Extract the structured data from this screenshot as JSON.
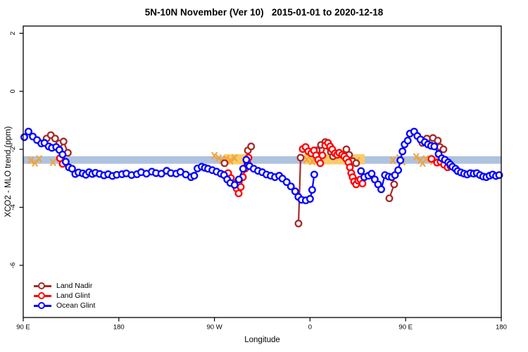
{
  "title": "5N-10N November (Ver 10)   2015-01-01 to 2020-12-18",
  "chart_data": {
    "type": "line",
    "title": "5N-10N November (Ver 10)   2015-01-01 to 2020-12-18",
    "xlabel": "Longitude",
    "ylabel": "XCO2 - MLO trend (ppm)",
    "x_note": "longitude axis wraps: 90E to 180 to 90W to 0 to 90E to 180, encoded 90..540",
    "xlim": [
      90,
      540
    ],
    "ylim": [
      -7.8,
      2.25
    ],
    "x_ticks": [
      90,
      180,
      270,
      360,
      450,
      540
    ],
    "x_tick_labels": [
      "90 E",
      "180",
      "90 W",
      "0",
      "90 E",
      "180"
    ],
    "y_ticks": [
      2,
      0,
      -2,
      -4,
      -6
    ],
    "y_tick_labels": [
      "2",
      "0",
      "-2",
      "-4",
      "-6"
    ],
    "grid": "off",
    "band": {
      "color": "#AFC3DE",
      "y_top": -2.24,
      "y_bottom": -2.5
    },
    "highlights": {
      "patch_color": "#FBCB68",
      "mark_color": "#F2A33C",
      "patches": [
        {
          "x_start": 279,
          "x_end": 301.5,
          "y_top": -2.17,
          "y_bottom": -2.52
        },
        {
          "x_start": 354.5,
          "x_end": 411.5,
          "y_top": -2.17,
          "y_bottom": -2.52
        }
      ],
      "marks": [
        [
          97,
          -2.38
        ],
        [
          101,
          -2.47
        ],
        [
          105,
          -2.33
        ],
        [
          118,
          -2.45
        ],
        [
          270,
          -2.22
        ],
        [
          274,
          -2.3
        ],
        [
          277,
          -2.38
        ],
        [
          281,
          -2.33
        ],
        [
          285,
          -2.4
        ],
        [
          289,
          -2.3
        ],
        [
          357,
          -2.35
        ],
        [
          362,
          -2.42
        ],
        [
          368,
          -2.3
        ],
        [
          398,
          -2.33
        ],
        [
          404,
          -2.4
        ],
        [
          438,
          -2.38
        ],
        [
          444,
          -2.3
        ],
        [
          447,
          -2.43
        ],
        [
          460,
          -2.26
        ],
        [
          464,
          -2.38
        ],
        [
          466,
          -2.48
        ],
        [
          469,
          -2.33
        ],
        [
          476,
          -2.41
        ]
      ]
    },
    "legend": {
      "position": "bottom-left",
      "entries": [
        "Land Nadir",
        "Land Glint",
        "Ocean Glint"
      ]
    },
    "series": [
      {
        "name": "Land Nadir",
        "color": "#A52A2A",
        "segments": [
          [
            [
              112,
              -1.63
            ],
            [
              116,
              -1.51
            ],
            [
              120,
              -1.63
            ],
            [
              124,
              -1.8
            ],
            [
              128,
              -1.73
            ],
            [
              132,
              -2.12
            ]
          ],
          [
            [
              279.5,
              -2.48
            ]
          ],
          [
            [
              301.5,
              -2.04
            ],
            [
              304.5,
              -1.9
            ]
          ],
          [
            [
              349.1,
              -4.56
            ],
            [
              351.1,
              -2.29
            ]
          ],
          [
            [
              366.3,
              -2.04
            ],
            [
              370.3,
              -1.85
            ],
            [
              374.3,
              -1.75
            ],
            [
              377.6,
              -1.9
            ],
            [
              379.6,
              -2.09
            ],
            [
              381.6,
              -2.24
            ]
          ],
          [
            [
              394.2,
              -2.0
            ],
            [
              396.8,
              -2.19
            ],
            [
              400.1,
              -2.41
            ],
            [
              403.4,
              -2.48
            ]
          ],
          [
            [
              434.6,
              -3.69
            ],
            [
              439.2,
              -3.21
            ]
          ],
          [
            [
              465.8,
              -1.78
            ],
            [
              470,
              -1.63
            ],
            [
              475.7,
              -1.61
            ],
            [
              480.3,
              -1.7
            ],
            [
              482.3,
              -1.92
            ],
            [
              485.6,
              -2.0
            ]
          ]
        ]
      },
      {
        "name": "Land Glint",
        "color": "#FF0000",
        "segments": [
          [
            [
              124.5,
              -2.31
            ],
            [
              127.1,
              -2.5
            ]
          ],
          [
            [
              282.9,
              -2.82
            ],
            [
              285.5,
              -2.99
            ],
            [
              288.2,
              -3.16
            ],
            [
              290.8,
              -3.35
            ],
            [
              292.8,
              -3.52
            ],
            [
              294.8,
              -3.3
            ],
            [
              296.8,
              -2.96
            ],
            [
              298.8,
              -2.67
            ],
            [
              300.8,
              -2.43
            ],
            [
              302.1,
              -2.29
            ]
          ],
          [
            [
              353.1,
              -1.99
            ],
            [
              355.8,
              -1.92
            ],
            [
              358.4,
              -2.07
            ],
            [
              361.1,
              -2.14
            ],
            [
              363.7,
              -2.04
            ],
            [
              365.7,
              -2.21
            ],
            [
              367.7,
              -2.36
            ],
            [
              369.6,
              -2.48
            ],
            [
              371.6,
              -2.21
            ],
            [
              374.3,
              -1.87
            ],
            [
              376.9,
              -1.78
            ],
            [
              378.9,
              -1.9
            ],
            [
              380.9,
              -2.0
            ],
            [
              383.5,
              -2.14
            ],
            [
              385.5,
              -2.19
            ],
            [
              387.5,
              -2.12
            ],
            [
              390.2,
              -2.19
            ],
            [
              392.2,
              -2.24
            ],
            [
              394.2,
              -2.33
            ],
            [
              396.2,
              -2.45
            ],
            [
              397.5,
              -2.62
            ],
            [
              398.8,
              -2.82
            ],
            [
              400.1,
              -2.96
            ],
            [
              401.5,
              -3.11
            ],
            [
              403.4,
              -3.21
            ],
            [
              405.4,
              -3.08
            ],
            [
              407.4,
              -3.04
            ],
            [
              409.4,
              -3.18
            ]
          ],
          [
            [
              474.3,
              -2.33
            ],
            [
              479.6,
              -2.46
            ],
            [
              482.9,
              -2.43
            ],
            [
              486.2,
              -2.53
            ],
            [
              489.5,
              -2.62
            ],
            [
              492.2,
              -2.58
            ]
          ]
        ]
      },
      {
        "name": "Ocean Glint",
        "color": "#0000FF",
        "segments": [
          [
            [
              91,
              -1.58
            ],
            [
              95,
              -1.39
            ],
            [
              99,
              -1.56
            ],
            [
              103,
              -1.68
            ],
            [
              107,
              -1.8
            ],
            [
              110,
              -1.78
            ],
            [
              114,
              -1.9
            ],
            [
              117,
              -1.95
            ],
            [
              121,
              -1.92
            ],
            [
              124,
              -2.02
            ],
            [
              127,
              -2.18
            ],
            [
              130,
              -2.43
            ],
            [
              133,
              -2.62
            ],
            [
              136,
              -2.67
            ],
            [
              139,
              -2.85
            ],
            [
              142,
              -2.8
            ],
            [
              146,
              -2.83
            ],
            [
              149,
              -2.88
            ],
            [
              152,
              -2.79
            ],
            [
              155,
              -2.85
            ],
            [
              158,
              -2.81
            ],
            [
              162,
              -2.85
            ],
            [
              166,
              -2.9
            ],
            [
              170,
              -2.86
            ],
            [
              174,
              -2.92
            ],
            [
              178,
              -2.88
            ],
            [
              183,
              -2.86
            ],
            [
              187,
              -2.83
            ],
            [
              192,
              -2.89
            ],
            [
              197,
              -2.86
            ],
            [
              201,
              -2.79
            ],
            [
              206,
              -2.84
            ],
            [
              211,
              -2.77
            ],
            [
              215,
              -2.82
            ],
            [
              220,
              -2.84
            ],
            [
              225,
              -2.74
            ],
            [
              229,
              -2.82
            ],
            [
              234,
              -2.84
            ],
            [
              238,
              -2.78
            ],
            [
              243,
              -2.87
            ],
            [
              248,
              -2.96
            ],
            [
              251,
              -2.91
            ],
            [
              254,
              -2.66
            ],
            [
              258,
              -2.6
            ],
            [
              261,
              -2.64
            ],
            [
              264,
              -2.67
            ],
            [
              268,
              -2.72
            ],
            [
              272,
              -2.77
            ],
            [
              276,
              -2.84
            ],
            [
              279,
              -2.89
            ],
            [
              282,
              -3.04
            ],
            [
              285,
              -3.16
            ],
            [
              289,
              -3.23
            ],
            [
              293,
              -3.04
            ],
            [
              297,
              -2.67
            ],
            [
              300,
              -2.36
            ],
            [
              303,
              -2.58
            ],
            [
              307,
              -2.67
            ],
            [
              311,
              -2.74
            ],
            [
              315,
              -2.79
            ],
            [
              319,
              -2.87
            ],
            [
              323,
              -2.91
            ],
            [
              327,
              -2.96
            ],
            [
              331,
              -2.91
            ],
            [
              334,
              -3.01
            ],
            [
              338,
              -3.13
            ],
            [
              342,
              -3.28
            ],
            [
              346,
              -3.45
            ],
            [
              349,
              -3.64
            ],
            [
              352,
              -3.74
            ],
            [
              356,
              -3.76
            ],
            [
              360,
              -3.71
            ],
            [
              362,
              -3.4
            ],
            [
              364,
              -2.87
            ]
          ],
          [
            [
              408,
              -2.75
            ],
            [
              411,
              -2.96
            ],
            [
              415,
              -2.91
            ],
            [
              418,
              -2.84
            ],
            [
              421,
              -3.04
            ],
            [
              424,
              -3.21
            ],
            [
              427,
              -3.38
            ],
            [
              430.5,
              -2.89
            ],
            [
              434,
              -2.94
            ],
            [
              437,
              -2.96
            ],
            [
              440,
              -2.89
            ],
            [
              443,
              -2.72
            ],
            [
              445,
              -2.38
            ],
            [
              447,
              -2.07
            ],
            [
              449,
              -1.83
            ],
            [
              452,
              -1.7
            ],
            [
              454,
              -1.46
            ],
            [
              458,
              -1.39
            ],
            [
              461,
              -1.54
            ],
            [
              464,
              -1.66
            ],
            [
              468,
              -1.75
            ],
            [
              471,
              -1.83
            ],
            [
              474,
              -1.88
            ],
            [
              477,
              -1.9
            ],
            [
              481,
              -2.16
            ],
            [
              484,
              -2.31
            ],
            [
              487,
              -2.36
            ],
            [
              490,
              -2.45
            ],
            [
              492,
              -2.52
            ],
            [
              494,
              -2.6
            ],
            [
              497,
              -2.67
            ],
            [
              499,
              -2.75
            ],
            [
              502,
              -2.8
            ],
            [
              505,
              -2.84
            ],
            [
              508,
              -2.87
            ],
            [
              511,
              -2.82
            ],
            [
              514,
              -2.84
            ],
            [
              517,
              -2.82
            ],
            [
              520,
              -2.89
            ],
            [
              523,
              -2.94
            ],
            [
              526,
              -2.96
            ],
            [
              529,
              -2.91
            ],
            [
              532,
              -2.87
            ],
            [
              535,
              -2.92
            ],
            [
              538,
              -2.89
            ]
          ]
        ]
      }
    ]
  }
}
